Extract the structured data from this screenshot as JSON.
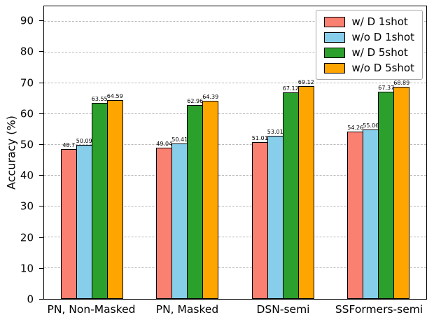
{
  "chart_data": {
    "type": "bar",
    "title": "",
    "xlabel": "",
    "ylabel": "Accuracy (%)",
    "ylim": [
      0,
      95
    ],
    "yticks": [
      0,
      10,
      20,
      30,
      40,
      50,
      60,
      70,
      80,
      90
    ],
    "grid": "horizontal-dashed",
    "legend_position": "upper-right",
    "categories": [
      "PN, Non-Masked",
      "PN, Masked",
      "DSN-semi",
      "SSFormers-semi"
    ],
    "series": [
      {
        "name": "w/ D 1shot",
        "color": "#fa8072",
        "values": [
          48.7,
          49.04,
          51.01,
          54.26
        ]
      },
      {
        "name": "w/o D 1shot",
        "color": "#87ceeb",
        "values": [
          50.09,
          50.41,
          53.01,
          55.06
        ]
      },
      {
        "name": "w/ D 5shot",
        "color": "#2ca02c",
        "values": [
          63.55,
          62.96,
          67.12,
          67.37
        ]
      },
      {
        "name": "w/o D 5shot",
        "color": "#ffa500",
        "values": [
          64.59,
          64.39,
          69.12,
          68.89
        ]
      }
    ]
  }
}
